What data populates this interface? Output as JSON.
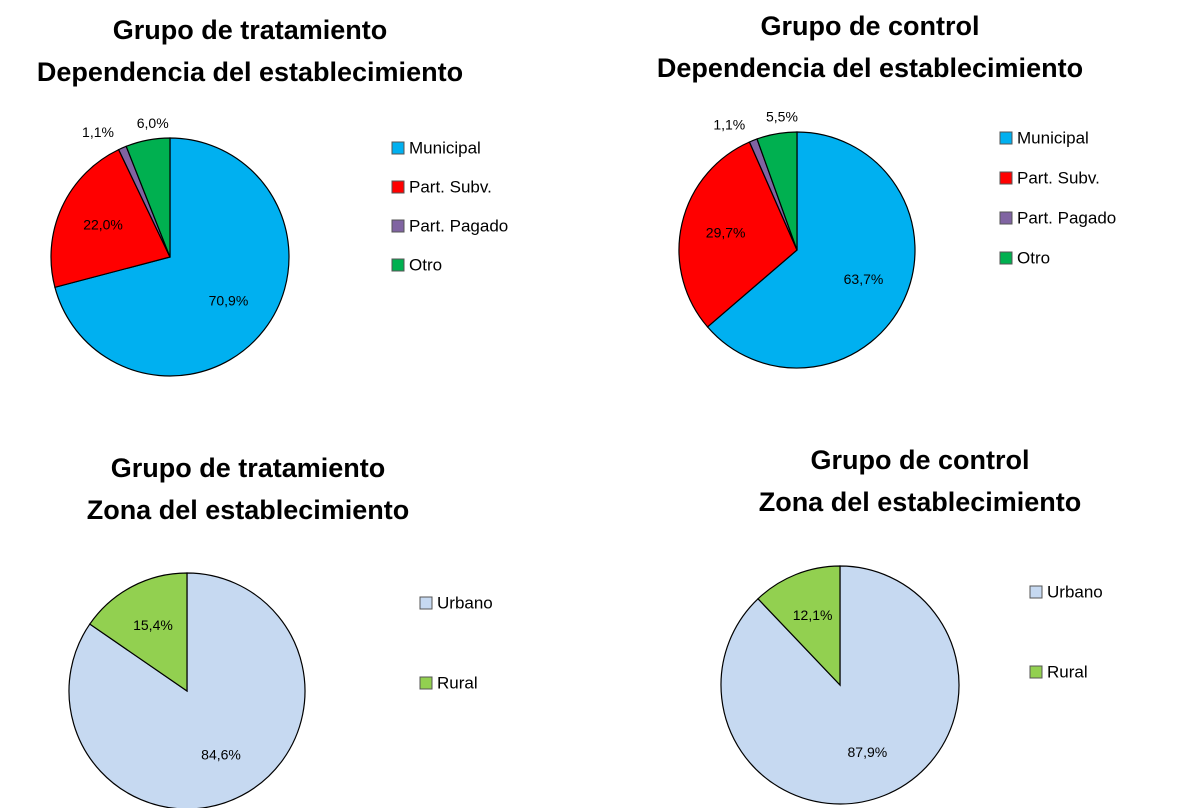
{
  "chart_data": [
    {
      "type": "pie",
      "title": "Grupo de tratamiento",
      "subtitle": "Dependencia del establecimiento",
      "categories": [
        "Municipal",
        "Part. Subv.",
        "Part. Pagado",
        "Otro"
      ],
      "values": [
        70.9,
        22.0,
        1.1,
        6.0
      ],
      "value_labels": [
        "70,9%",
        "22,0%",
        "1,1%",
        "6,0%"
      ],
      "colors": [
        "#00b0f0",
        "#ff0000",
        "#8064a2",
        "#00b050"
      ]
    },
    {
      "type": "pie",
      "title": "Grupo de control",
      "subtitle": "Dependencia del establecimiento",
      "categories": [
        "Municipal",
        "Part. Subv.",
        "Part. Pagado",
        "Otro"
      ],
      "values": [
        63.7,
        29.7,
        1.1,
        5.5
      ],
      "value_labels": [
        "63,7%",
        "29,7%",
        "1,1%",
        "5,5%"
      ],
      "colors": [
        "#00b0f0",
        "#ff0000",
        "#8064a2",
        "#00b050"
      ]
    },
    {
      "type": "pie",
      "title": "Grupo de tratamiento",
      "subtitle": "Zona del establecimiento",
      "categories": [
        "Urbano",
        "Rural"
      ],
      "values": [
        84.6,
        15.4
      ],
      "value_labels": [
        "84,6%",
        "15,4%"
      ],
      "colors": [
        "#c6d9f1",
        "#92d050"
      ]
    },
    {
      "type": "pie",
      "title": "Grupo de control",
      "subtitle": "Zona del establecimiento",
      "categories": [
        "Urbano",
        "Rural"
      ],
      "values": [
        87.9,
        12.1
      ],
      "value_labels": [
        "87,9%",
        "12,1%"
      ],
      "colors": [
        "#c6d9f1",
        "#92d050"
      ]
    }
  ]
}
